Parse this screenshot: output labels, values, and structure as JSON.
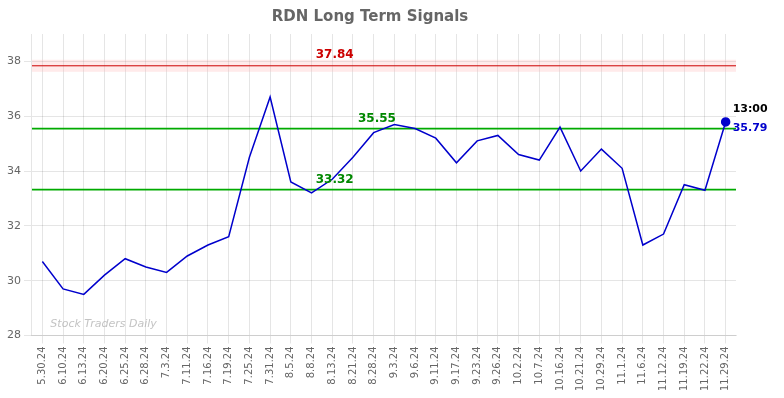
{
  "chart_data": {
    "type": "line",
    "title": "RDN Long Term Signals",
    "categories": [
      "5.30.24",
      "6.10.24",
      "6.13.24",
      "6.20.24",
      "6.25.24",
      "6.28.24",
      "7.3.24",
      "7.11.24",
      "7.16.24",
      "7.19.24",
      "7.25.24",
      "7.31.24",
      "8.5.24",
      "8.8.24",
      "8.13.24",
      "8.21.24",
      "8.28.24",
      "9.3.24",
      "9.6.24",
      "9.11.24",
      "9.17.24",
      "9.23.24",
      "9.26.24",
      "10.2.24",
      "10.7.24",
      "10.16.24",
      "10.21.24",
      "10.29.24",
      "11.1.24",
      "11.6.24",
      "11.12.24",
      "11.19.24",
      "11.22.24",
      "11.29.24"
    ],
    "values": [
      30.7,
      29.7,
      29.5,
      30.2,
      30.8,
      30.5,
      30.3,
      30.9,
      31.3,
      31.6,
      34.5,
      36.7,
      33.6,
      33.2,
      33.7,
      34.5,
      35.4,
      35.7,
      35.55,
      35.2,
      34.3,
      35.1,
      35.3,
      34.6,
      34.4,
      35.6,
      34.0,
      34.8,
      34.1,
      31.3,
      31.7,
      33.5,
      33.3,
      35.79
    ],
    "color": "#0000cc",
    "ylim": [
      28,
      39
    ],
    "yticks": [
      28,
      30,
      32,
      34,
      36,
      38
    ],
    "grid": true,
    "watermark": "Stock Traders Daily",
    "resistance": {
      "value": 37.84,
      "band": [
        37.62,
        38.06
      ],
      "color": "#cc0000",
      "band_color": "#ffaaaa"
    },
    "support": {
      "values": [
        35.55,
        33.32
      ],
      "color": "#00aa00",
      "label_color": "#008800"
    },
    "last_point": {
      "time": "13:00",
      "price": 35.79
    }
  }
}
